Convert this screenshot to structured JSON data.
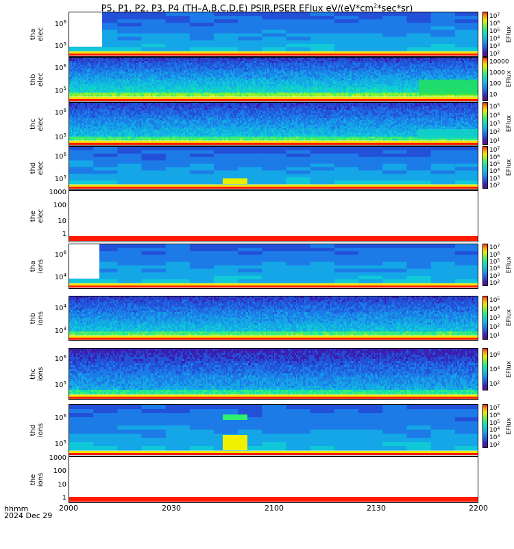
{
  "title": {
    "text_before": "P5, P1, P2, P3, P4 (TH–A,B,C,D,E) PSIR,PSER EFlux eV/(eV*cm",
    "superscript": "2",
    "text_after": "*sec*sr)"
  },
  "x_axis": {
    "units_line1": "hhmm",
    "units_line2": "2024 Dec 29",
    "ticks": [
      "2000",
      "2030",
      "2100",
      "2130",
      "2200"
    ]
  },
  "panels": [
    {
      "id": "tha-elec",
      "ylabel": [
        "tha",
        "elec"
      ],
      "yticks": [
        {
          "base": "10",
          "exp": "6"
        },
        {
          "base": "10",
          "exp": "5"
        }
      ],
      "cbar_ticks": [
        {
          "base": "10",
          "exp": "7"
        },
        {
          "base": "10",
          "exp": "6"
        },
        {
          "base": "10",
          "exp": "5"
        },
        {
          "base": "10",
          "exp": "4"
        },
        {
          "base": "10",
          "exp": "3"
        },
        {
          "base": "10",
          "exp": "2"
        }
      ],
      "cbar_label": "EFlux"
    },
    {
      "id": "thb-elec",
      "ylabel": [
        "thb",
        "elec"
      ],
      "yticks": [
        {
          "base": "10",
          "exp": "6"
        },
        {
          "base": "10",
          "exp": "5"
        }
      ],
      "cbar_ticks": [
        {
          "base": "10000",
          "exp": ""
        },
        {
          "base": "1000",
          "exp": ""
        },
        {
          "base": "100",
          "exp": ""
        },
        {
          "base": "10",
          "exp": ""
        }
      ],
      "cbar_label": "EFlux"
    },
    {
      "id": "thc-elec",
      "ylabel": [
        "thc",
        "elec"
      ],
      "yticks": [
        {
          "base": "10",
          "exp": "6"
        },
        {
          "base": "10",
          "exp": "5"
        }
      ],
      "cbar_ticks": [
        {
          "base": "10",
          "exp": "5"
        },
        {
          "base": "10",
          "exp": "4"
        },
        {
          "base": "10",
          "exp": "3"
        },
        {
          "base": "10",
          "exp": "2"
        },
        {
          "base": "10",
          "exp": "1"
        }
      ],
      "cbar_label": "EFlux"
    },
    {
      "id": "thd-elec",
      "ylabel": [
        "thd",
        "elec"
      ],
      "yticks": [
        {
          "base": "10",
          "exp": "6"
        },
        {
          "base": "10",
          "exp": "5"
        }
      ],
      "cbar_ticks": [
        {
          "base": "10",
          "exp": "7"
        },
        {
          "base": "10",
          "exp": "6"
        },
        {
          "base": "10",
          "exp": "5"
        },
        {
          "base": "10",
          "exp": "4"
        },
        {
          "base": "10",
          "exp": "3"
        },
        {
          "base": "10",
          "exp": "2"
        }
      ],
      "cbar_label": "EFlux"
    },
    {
      "id": "the-elec",
      "ylabel": [
        "the",
        "elec"
      ],
      "yticks": [
        {
          "base": "1000",
          "exp": ""
        },
        {
          "base": "100",
          "exp": ""
        },
        {
          "base": "10",
          "exp": ""
        },
        {
          "base": "1",
          "exp": ""
        }
      ],
      "cbar_ticks": [],
      "cbar_label": ""
    },
    {
      "id": "tha-ions",
      "ylabel": [
        "tha",
        "ions"
      ],
      "yticks": [
        {
          "base": "10",
          "exp": "6"
        },
        {
          "base": "10",
          "exp": "4"
        }
      ],
      "cbar_ticks": [
        {
          "base": "10",
          "exp": "7"
        },
        {
          "base": "10",
          "exp": "6"
        },
        {
          "base": "10",
          "exp": "5"
        },
        {
          "base": "10",
          "exp": "4"
        },
        {
          "base": "10",
          "exp": "3"
        },
        {
          "base": "10",
          "exp": "2"
        }
      ],
      "cbar_label": "EFlux"
    },
    {
      "id": "thb-ions",
      "ylabel": [
        "thb",
        "ions"
      ],
      "yticks": [
        {
          "base": "10",
          "exp": "4"
        },
        {
          "base": "10",
          "exp": "3"
        }
      ],
      "cbar_ticks": [
        {
          "base": "10",
          "exp": "5"
        },
        {
          "base": "10",
          "exp": "4"
        },
        {
          "base": "10",
          "exp": "3"
        },
        {
          "base": "10",
          "exp": "2"
        },
        {
          "base": "10",
          "exp": "1"
        }
      ],
      "cbar_label": "EFlux"
    },
    {
      "id": "thc-ions",
      "ylabel": [
        "thc",
        "ions"
      ],
      "yticks": [
        {
          "base": "10",
          "exp": "6"
        },
        {
          "base": "10",
          "exp": "5"
        }
      ],
      "cbar_ticks": [
        {
          "base": "10",
          "exp": "6"
        },
        {
          "base": "10",
          "exp": "4"
        },
        {
          "base": "10",
          "exp": "2"
        }
      ],
      "cbar_label": "EFlux"
    },
    {
      "id": "thd-ions",
      "ylabel": [
        "thd",
        "ions"
      ],
      "yticks": [
        {
          "base": "10",
          "exp": "6"
        },
        {
          "base": "10",
          "exp": "5"
        }
      ],
      "cbar_ticks": [
        {
          "base": "10",
          "exp": "7"
        },
        {
          "base": "10",
          "exp": "6"
        },
        {
          "base": "10",
          "exp": "5"
        },
        {
          "base": "10",
          "exp": "4"
        },
        {
          "base": "10",
          "exp": "3"
        },
        {
          "base": "10",
          "exp": "2"
        }
      ],
      "cbar_label": "EFlux"
    },
    {
      "id": "the-ions",
      "ylabel": [
        "the",
        "ions"
      ],
      "yticks": [
        {
          "base": "1000",
          "exp": ""
        },
        {
          "base": "100",
          "exp": ""
        },
        {
          "base": "10",
          "exp": ""
        },
        {
          "base": "1",
          "exp": ""
        }
      ],
      "cbar_ticks": [],
      "cbar_label": ""
    }
  ],
  "chart_data": {
    "type": "heatmap",
    "x_range": [
      "2000",
      "2200"
    ],
    "y_scale": "log",
    "colormap": "rainbow",
    "colorbar_label": "EFlux"
  }
}
